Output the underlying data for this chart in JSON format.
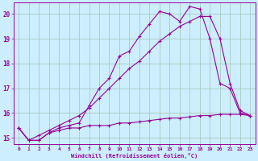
{
  "xlabel": "Windchill (Refroidissement éolien,°C)",
  "background_color": "#cceeff",
  "grid_color": "#aaccbb",
  "line_color": "#990099",
  "xlim": [
    -0.5,
    23.5
  ],
  "ylim": [
    14.75,
    20.45
  ],
  "yticks": [
    15,
    16,
    17,
    18,
    19,
    20
  ],
  "xticks": [
    0,
    1,
    2,
    3,
    4,
    5,
    6,
    7,
    8,
    9,
    10,
    11,
    12,
    13,
    14,
    15,
    16,
    17,
    18,
    19,
    20,
    21,
    22,
    23
  ],
  "series1_x": [
    0,
    1,
    2,
    3,
    4,
    5,
    6,
    7,
    8,
    9,
    10,
    11,
    12,
    13,
    14,
    15,
    16,
    17,
    18,
    19,
    20,
    21,
    22,
    23
  ],
  "series1_y": [
    15.4,
    14.9,
    14.9,
    15.2,
    15.3,
    15.4,
    15.4,
    15.5,
    15.5,
    15.5,
    15.6,
    15.6,
    15.65,
    15.7,
    15.75,
    15.8,
    15.8,
    15.85,
    15.9,
    15.9,
    15.95,
    15.95,
    15.95,
    15.9
  ],
  "series2_x": [
    0,
    1,
    2,
    3,
    4,
    5,
    6,
    7,
    8,
    9,
    10,
    11,
    12,
    13,
    14,
    15,
    16,
    17,
    18,
    19,
    20,
    21,
    22,
    23
  ],
  "series2_y": [
    15.4,
    14.9,
    15.1,
    15.3,
    15.5,
    15.7,
    15.9,
    16.2,
    16.6,
    17.0,
    17.4,
    17.8,
    18.1,
    18.5,
    18.9,
    19.2,
    19.5,
    19.7,
    19.9,
    19.9,
    19.0,
    17.2,
    16.1,
    15.9
  ],
  "series3_x": [
    0,
    1,
    2,
    3,
    4,
    5,
    6,
    7,
    8,
    9,
    10,
    11,
    12,
    13,
    14,
    15,
    16,
    17,
    18,
    19,
    20,
    21,
    22,
    23
  ],
  "series3_y": [
    15.4,
    14.9,
    14.9,
    15.2,
    15.4,
    15.5,
    15.6,
    16.3,
    17.0,
    17.4,
    18.3,
    18.5,
    19.1,
    19.6,
    20.1,
    20.0,
    19.7,
    20.3,
    20.2,
    19.0,
    17.2,
    17.0,
    16.0,
    15.9
  ]
}
